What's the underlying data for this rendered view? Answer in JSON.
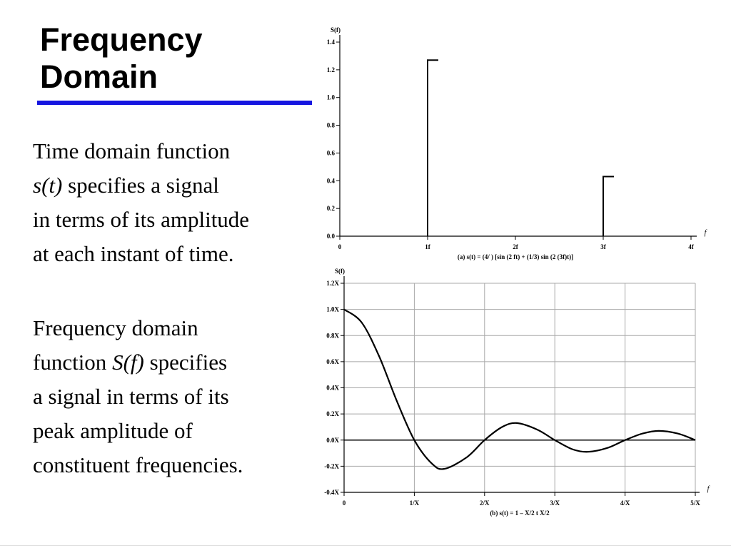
{
  "slide": {
    "title_line1": "Frequency",
    "title_line2": "Domain",
    "para1": {
      "l1": "Time domain function",
      "l2_em": "s(t)",
      "l2_rest": " specifies a signal",
      "l3": "in terms of its amplitude",
      "l4": "at each instant of time."
    },
    "para2": {
      "l1": "Frequency domain",
      "l2_pre": "function ",
      "l2_em": "S(f)",
      "l2_rest": " specifies",
      "l3": "a signal in terms of its",
      "l4": "peak amplitude of",
      "l5": "constituent frequencies."
    }
  },
  "chart_data": [
    {
      "type": "bar",
      "style": "stem",
      "ylabel": "S(f)",
      "xlabel": "f",
      "caption": "(a) s(t) = (4/  ) [sin (2  ft) + (1/3) sin (2  (3f)t)]",
      "xlim": [
        0,
        4
      ],
      "ylim": [
        0,
        1.4
      ],
      "x_ticks": [
        "0",
        "1f",
        "2f",
        "3f",
        "4f"
      ],
      "y_ticks": [
        "0.0",
        "0.2",
        "0.4",
        "0.6",
        "0.8",
        "1.0",
        "1.2",
        "1.4"
      ],
      "grid": false,
      "x": [
        1,
        3
      ],
      "values": [
        1.27,
        0.43
      ]
    },
    {
      "type": "line",
      "ylabel": "S(f)",
      "xlabel": "f",
      "caption": "(b) s(t) = 1       – X/2    t    X/2",
      "xlim": [
        0,
        5
      ],
      "ylim": [
        -0.4,
        1.2
      ],
      "x_ticks": [
        "0",
        "1/X",
        "2/X",
        "3/X",
        "4/X",
        "5/X"
      ],
      "y_ticks": [
        "-0.4X",
        "-0.2X",
        "0.0X",
        "0.2X",
        "0.4X",
        "0.6X",
        "0.8X",
        "1.0X",
        "1.2X"
      ],
      "grid": true,
      "series": [
        {
          "x": [
            0,
            0.25,
            0.5,
            0.75,
            1.0,
            1.25,
            1.43,
            1.75,
            2.0,
            2.25,
            2.46,
            2.75,
            3.0,
            3.25,
            3.47,
            3.75,
            4.0,
            4.25,
            4.48,
            4.75,
            5.0
          ],
          "values": [
            1.0,
            0.9,
            0.64,
            0.3,
            0.0,
            -0.18,
            -0.22,
            -0.13,
            0.0,
            0.1,
            0.13,
            0.08,
            0.0,
            -0.07,
            -0.09,
            -0.06,
            0.0,
            0.05,
            0.07,
            0.05,
            0.0
          ]
        }
      ]
    }
  ]
}
